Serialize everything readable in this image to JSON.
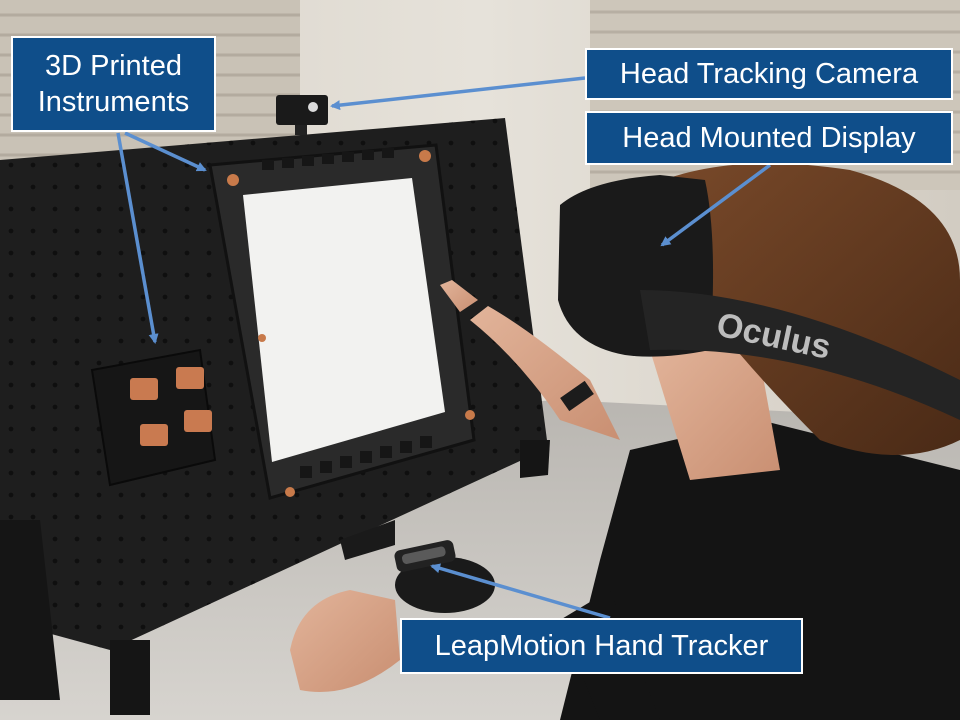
{
  "callouts": {
    "instruments": "3D Printed\nInstruments",
    "camera": "Head Tracking Camera",
    "hmd": "Head Mounted Display",
    "leap": "LeapMotion Hand Tracker"
  },
  "colors": {
    "callout_bg": "#0f4e8a",
    "callout_border": "#ffffff",
    "arrow": "#5b8fd0"
  },
  "headset_brand": "Oculus"
}
